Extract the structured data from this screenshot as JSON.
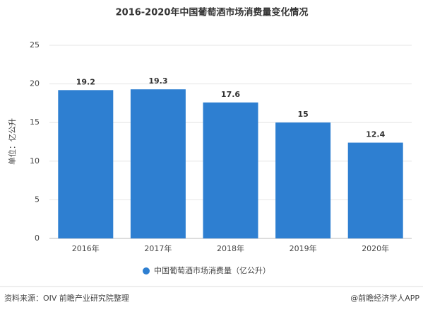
{
  "chart_data": {
    "type": "bar",
    "title": "2016-2020年中国葡萄酒市场消费量变化情况",
    "y_label": "单位：亿公升",
    "categories": [
      "2016年",
      "2017年",
      "2018年",
      "2019年",
      "2020年"
    ],
    "series": [
      {
        "name": "中国葡萄酒市场消费量（亿公升）",
        "color": "#2e7fd1",
        "values": [
          19.2,
          19.3,
          17.6,
          15,
          12.4
        ]
      }
    ],
    "ylim": [
      0,
      25
    ],
    "yticks": [
      0,
      5,
      10,
      15,
      20,
      25
    ],
    "grid": true,
    "source": "资料来源：OIV 前瞻产业研究院整理",
    "credit": "@前瞻经济学人APP"
  }
}
